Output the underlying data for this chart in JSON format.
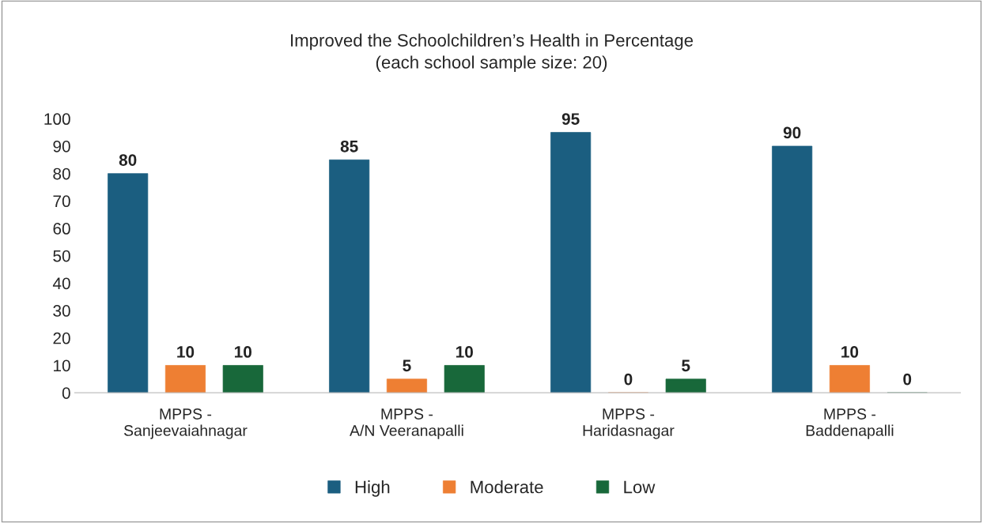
{
  "chart_data": {
    "type": "bar",
    "title": "Improved the Schoolchildren’s Health in Percentage",
    "subtitle": "(each school sample size: 20)",
    "categories": [
      "MPPS -\nSanjeevaiahnagar",
      "MPPS -\nA/N Veeranapalli",
      "MPPS -\nHaridasnagar",
      "MPPS -\nBaddenapalli"
    ],
    "series": [
      {
        "name": "High",
        "color": "#1b5e80",
        "values": [
          80,
          85,
          95,
          90
        ]
      },
      {
        "name": "Moderate",
        "color": "#ee7f33",
        "values": [
          10,
          5,
          0,
          10
        ]
      },
      {
        "name": "Low",
        "color": "#18683a",
        "values": [
          10,
          10,
          5,
          0
        ]
      }
    ],
    "ylim": [
      0,
      100
    ],
    "yticks": [
      0,
      10,
      20,
      30,
      40,
      50,
      60,
      70,
      80,
      90,
      100
    ],
    "grid": false,
    "legend": "bottom",
    "data_labels": true
  }
}
